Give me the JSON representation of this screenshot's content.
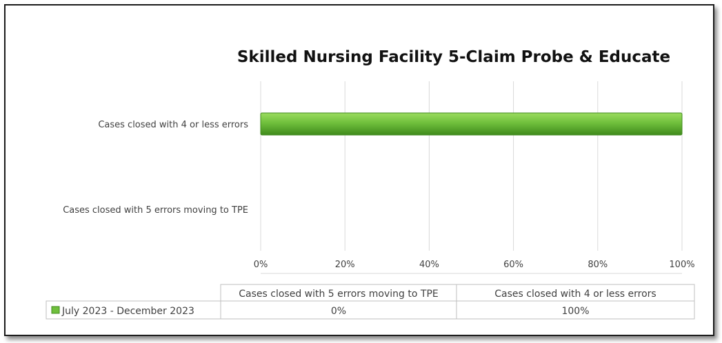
{
  "chart_data": {
    "type": "bar",
    "orientation": "horizontal",
    "title": "Skilled Nursing Facility 5-Claim Probe & Educate",
    "categories": [
      "Cases closed with 5 errors moving to TPE",
      "Cases closed with 4 or less errors"
    ],
    "series": [
      {
        "name": "July 2023 - December 2023",
        "values": [
          0,
          1
        ]
      }
    ],
    "xlim": [
      0,
      1
    ],
    "x_ticks": [
      0,
      0.2,
      0.4,
      0.6,
      0.8,
      1.0
    ],
    "x_tick_labels": [
      "0%",
      "20%",
      "40%",
      "60%",
      "80%",
      "100%"
    ],
    "value_labels": [
      "0%",
      "100%"
    ],
    "grid": true,
    "legend": "data-table",
    "colors": {
      "bar": "#6fbf3c",
      "bar_dark": "#3f8a1c",
      "grid": "#d9d9d9"
    }
  }
}
